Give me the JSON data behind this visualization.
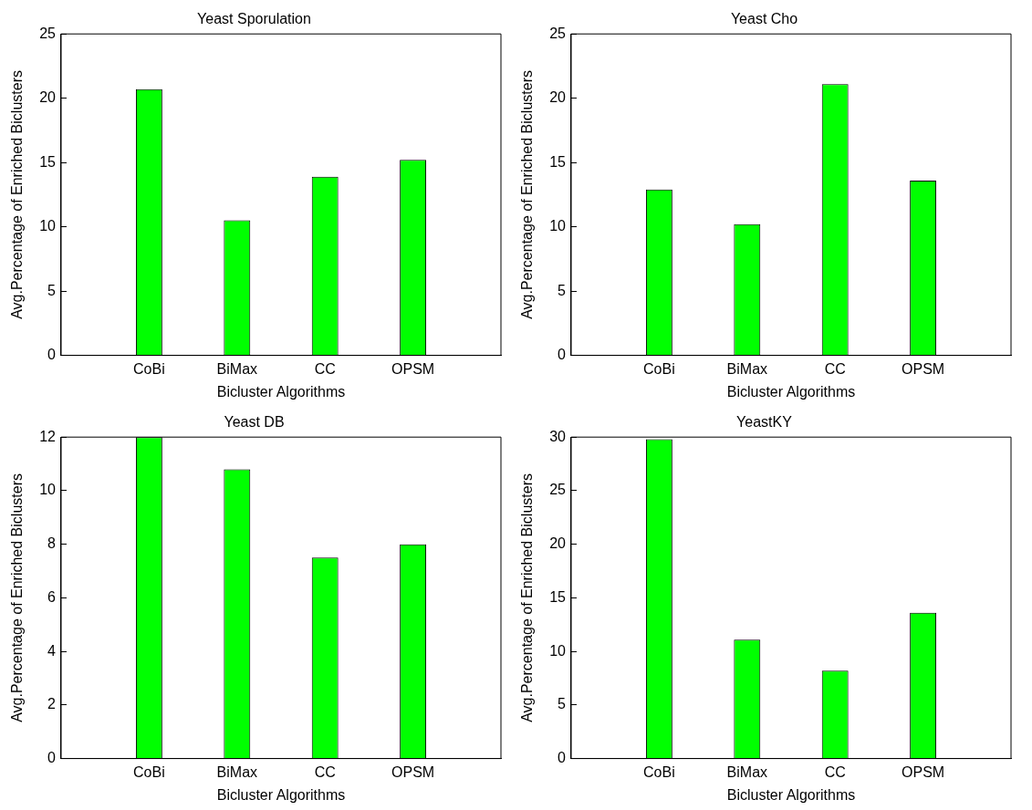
{
  "chart_data": [
    {
      "type": "bar",
      "title": "Yeast Sporulation",
      "xlabel": "Bicluster Algorithms",
      "ylabel": "Avg.Percentage of Enriched Biclusters",
      "categories": [
        "CoBi",
        "BiMax",
        "CC",
        "OPSM"
      ],
      "values": [
        20.7,
        10.5,
        13.9,
        15.2
      ],
      "color": "#00ff00",
      "ylim": [
        0,
        25
      ],
      "yticks": [
        0,
        5,
        10,
        15,
        20,
        25
      ]
    },
    {
      "type": "bar",
      "title": "Yeast Cho",
      "xlabel": "Bicluster Algorithms",
      "ylabel": "Avg.Percentage of Enriched Biclusters",
      "categories": [
        "CoBi",
        "BiMax",
        "CC",
        "OPSM"
      ],
      "values": [
        12.9,
        10.2,
        21.1,
        13.6
      ],
      "color": "#00ff00",
      "ylim": [
        0,
        25
      ],
      "yticks": [
        0,
        5,
        10,
        15,
        20,
        25
      ]
    },
    {
      "type": "bar",
      "title": "Yeast DB",
      "xlabel": "Bicluster Algorithms",
      "ylabel": "Avg.Percentage of Enriched Biclusters",
      "categories": [
        "CoBi",
        "BiMax",
        "CC",
        "OPSM"
      ],
      "values": [
        12.0,
        10.8,
        7.5,
        8.0
      ],
      "color": "#00ff00",
      "ylim": [
        0,
        12
      ],
      "yticks": [
        0,
        2,
        4,
        6,
        8,
        10,
        12
      ]
    },
    {
      "type": "bar",
      "title": "YeastKY",
      "xlabel": "Bicluster Algorithms",
      "ylabel": "Avg.Percentage of Enriched Biclusters",
      "categories": [
        "CoBi",
        "BiMax",
        "CC",
        "OPSM"
      ],
      "values": [
        29.8,
        11.1,
        8.2,
        13.6
      ],
      "color": "#00ff00",
      "ylim": [
        0,
        30
      ],
      "yticks": [
        0,
        5,
        10,
        15,
        20,
        25,
        30
      ]
    }
  ]
}
